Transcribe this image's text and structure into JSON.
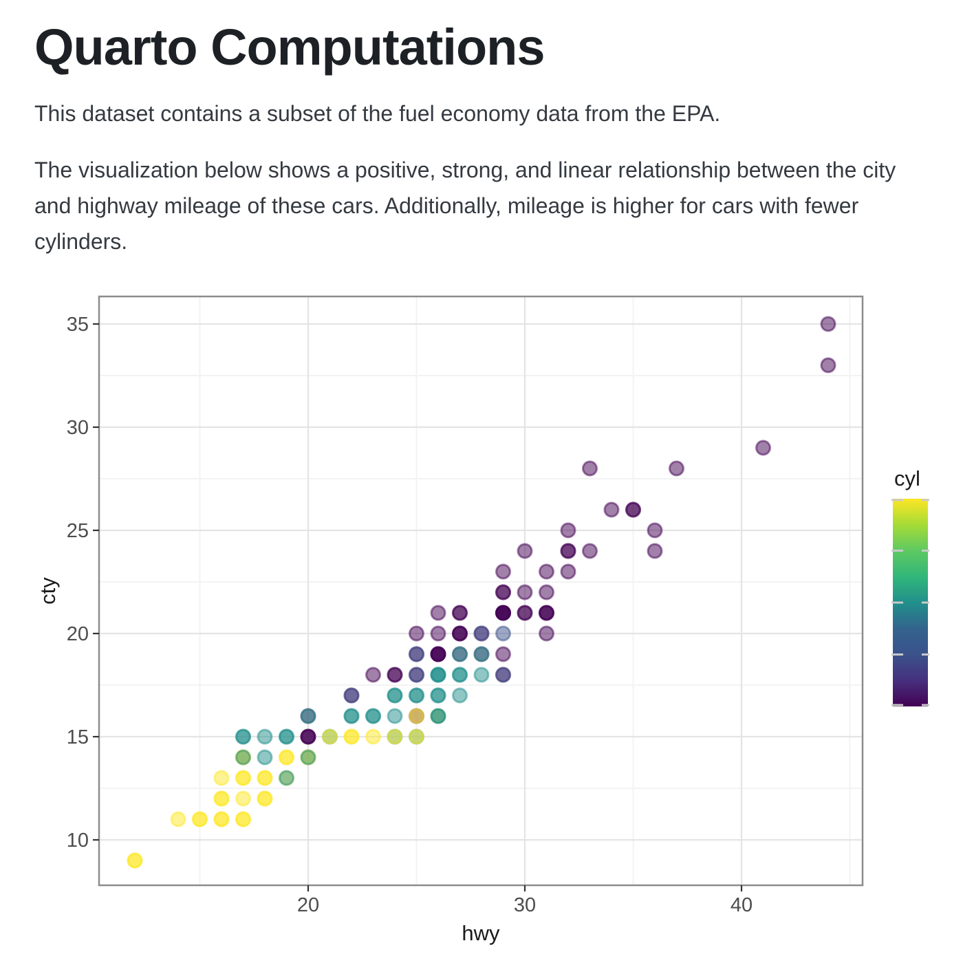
{
  "page": {
    "title": "Quarto Computations",
    "paragraphs": {
      "intro": "This dataset contains a subset of the fuel economy data from the EPA.",
      "description": "The visualization below shows a positive, strong, and linear relationship between the city and highway mileage of these cars. Additionally, mileage is higher for cars with fewer cylinders."
    }
  },
  "chart_data": {
    "type": "scatter",
    "xlabel": "hwy",
    "ylabel": "cty",
    "x_axis": {
      "ticks": [
        20,
        30,
        40
      ],
      "minor_ticks": [
        15,
        25,
        35,
        45
      ],
      "range": [
        10.4,
        45.6
      ]
    },
    "y_axis": {
      "ticks": [
        10,
        15,
        20,
        25,
        30,
        35
      ],
      "minor_ticks": [
        12.5,
        17.5,
        22.5,
        27.5,
        32.5
      ],
      "range": [
        7.7,
        36.3
      ]
    },
    "legend": {
      "title": "cyl",
      "min": 4,
      "max": 8,
      "tick_values": [
        4,
        5,
        6,
        7,
        8
      ],
      "labels_visible": false,
      "gradient_top_to_bottom": [
        "#FDE725",
        "#A5DB36",
        "#5EC962",
        "#32B67A",
        "#21908C",
        "#33638D",
        "#3B528B",
        "#46307E",
        "#440154"
      ]
    },
    "cyl_colors": {
      "4": "#440154",
      "5": "#3B528B",
      "6": "#21908C",
      "8": "#FDE725"
    },
    "point_alpha": 0.5,
    "style": {
      "grid_major": "#E4E4E4",
      "grid_minor": "#F3F3F3",
      "panel_border": "#8C8C8C",
      "tick_color": "#333333",
      "tick_label_color": "#4D4D4D",
      "axis_title_color": "#1A1A1A",
      "legend_tick_color": "#C9C9C9"
    },
    "points": [
      {
        "hwy": 12,
        "cty": 9,
        "layers": [
          8,
          8
        ]
      },
      {
        "hwy": 14,
        "cty": 11,
        "layers": [
          8
        ]
      },
      {
        "hwy": 15,
        "cty": 11,
        "layers": [
          8,
          8
        ]
      },
      {
        "hwy": 16,
        "cty": 11,
        "layers": [
          8,
          8
        ]
      },
      {
        "hwy": 17,
        "cty": 11,
        "layers": [
          8,
          8
        ]
      },
      {
        "hwy": 16,
        "cty": 12,
        "layers": [
          8,
          8
        ]
      },
      {
        "hwy": 17,
        "cty": 12,
        "layers": [
          8
        ]
      },
      {
        "hwy": 18,
        "cty": 12,
        "layers": [
          8,
          8
        ]
      },
      {
        "hwy": 16,
        "cty": 13,
        "layers": [
          8
        ]
      },
      {
        "hwy": 17,
        "cty": 13,
        "layers": [
          8,
          8
        ]
      },
      {
        "hwy": 18,
        "cty": 13,
        "layers": [
          8,
          8
        ]
      },
      {
        "hwy": 19,
        "cty": 13,
        "layers": [
          8,
          6
        ]
      },
      {
        "hwy": 17,
        "cty": 14,
        "layers": [
          8,
          8,
          6
        ]
      },
      {
        "hwy": 18,
        "cty": 14,
        "layers": [
          6
        ]
      },
      {
        "hwy": 19,
        "cty": 14,
        "layers": [
          8,
          8
        ]
      },
      {
        "hwy": 20,
        "cty": 14,
        "layers": [
          8,
          8,
          6
        ]
      },
      {
        "hwy": 17,
        "cty": 15,
        "layers": [
          6,
          6
        ]
      },
      {
        "hwy": 18,
        "cty": 15,
        "layers": [
          6
        ]
      },
      {
        "hwy": 19,
        "cty": 15,
        "layers": [
          6,
          6
        ]
      },
      {
        "hwy": 20,
        "cty": 15,
        "layers": [
          4,
          4,
          4
        ]
      },
      {
        "hwy": 21,
        "cty": 15,
        "layers": [
          6,
          8
        ]
      },
      {
        "hwy": 22,
        "cty": 15,
        "layers": [
          8,
          8
        ]
      },
      {
        "hwy": 23,
        "cty": 15,
        "layers": [
          8
        ]
      },
      {
        "hwy": 24,
        "cty": 15,
        "layers": [
          6,
          8
        ]
      },
      {
        "hwy": 25,
        "cty": 15,
        "layers": [
          6,
          8
        ]
      },
      {
        "hwy": 20,
        "cty": 16,
        "layers": [
          4,
          6
        ]
      },
      {
        "hwy": 22,
        "cty": 16,
        "layers": [
          6,
          6
        ]
      },
      {
        "hwy": 23,
        "cty": 16,
        "layers": [
          6,
          6
        ]
      },
      {
        "hwy": 24,
        "cty": 16,
        "layers": [
          6
        ]
      },
      {
        "hwy": 25,
        "cty": 16,
        "layers": [
          4,
          8
        ]
      },
      {
        "hwy": 26,
        "cty": 16,
        "layers": [
          8,
          6,
          6
        ]
      },
      {
        "hwy": 22,
        "cty": 17,
        "layers": [
          4,
          5
        ]
      },
      {
        "hwy": 24,
        "cty": 17,
        "layers": [
          6,
          6
        ]
      },
      {
        "hwy": 25,
        "cty": 17,
        "layers": [
          6,
          6
        ]
      },
      {
        "hwy": 26,
        "cty": 17,
        "layers": [
          6,
          6
        ]
      },
      {
        "hwy": 27,
        "cty": 17,
        "layers": [
          6
        ]
      },
      {
        "hwy": 23,
        "cty": 18,
        "layers": [
          4
        ]
      },
      {
        "hwy": 24,
        "cty": 18,
        "layers": [
          4,
          4
        ]
      },
      {
        "hwy": 25,
        "cty": 18,
        "layers": [
          4,
          5
        ]
      },
      {
        "hwy": 26,
        "cty": 18,
        "layers": [
          6,
          6,
          6
        ]
      },
      {
        "hwy": 27,
        "cty": 18,
        "layers": [
          6,
          6
        ]
      },
      {
        "hwy": 28,
        "cty": 18,
        "layers": [
          6
        ]
      },
      {
        "hwy": 29,
        "cty": 18,
        "layers": [
          4,
          5
        ]
      },
      {
        "hwy": 25,
        "cty": 19,
        "layers": [
          4,
          5
        ]
      },
      {
        "hwy": 26,
        "cty": 19,
        "layers": [
          4,
          4,
          4,
          4
        ]
      },
      {
        "hwy": 27,
        "cty": 19,
        "layers": [
          4,
          6
        ]
      },
      {
        "hwy": 28,
        "cty": 19,
        "layers": [
          4,
          6
        ]
      },
      {
        "hwy": 29,
        "cty": 19,
        "layers": [
          4
        ]
      },
      {
        "hwy": 25,
        "cty": 20,
        "layers": [
          4
        ]
      },
      {
        "hwy": 26,
        "cty": 20,
        "layers": [
          4
        ]
      },
      {
        "hwy": 27,
        "cty": 20,
        "layers": [
          4,
          4,
          4
        ]
      },
      {
        "hwy": 28,
        "cty": 20,
        "layers": [
          4,
          5
        ]
      },
      {
        "hwy": 29,
        "cty": 20,
        "layers": [
          5
        ]
      },
      {
        "hwy": 31,
        "cty": 20,
        "layers": [
          4
        ]
      },
      {
        "hwy": 26,
        "cty": 21,
        "layers": [
          4
        ]
      },
      {
        "hwy": 27,
        "cty": 21,
        "layers": [
          4,
          4
        ]
      },
      {
        "hwy": 29,
        "cty": 21,
        "layers": [
          5,
          4,
          4,
          4,
          4
        ]
      },
      {
        "hwy": 30,
        "cty": 21,
        "layers": [
          4,
          4
        ]
      },
      {
        "hwy": 31,
        "cty": 21,
        "layers": [
          4,
          4,
          4
        ]
      },
      {
        "hwy": 29,
        "cty": 22,
        "layers": [
          4,
          4
        ]
      },
      {
        "hwy": 30,
        "cty": 22,
        "layers": [
          4
        ]
      },
      {
        "hwy": 31,
        "cty": 22,
        "layers": [
          4
        ]
      },
      {
        "hwy": 29,
        "cty": 23,
        "layers": [
          4
        ]
      },
      {
        "hwy": 31,
        "cty": 23,
        "layers": [
          4
        ]
      },
      {
        "hwy": 32,
        "cty": 23,
        "layers": [
          4
        ]
      },
      {
        "hwy": 30,
        "cty": 24,
        "layers": [
          4
        ]
      },
      {
        "hwy": 32,
        "cty": 24,
        "layers": [
          4,
          4
        ]
      },
      {
        "hwy": 33,
        "cty": 24,
        "layers": [
          4
        ]
      },
      {
        "hwy": 36,
        "cty": 24,
        "layers": [
          4
        ]
      },
      {
        "hwy": 32,
        "cty": 25,
        "layers": [
          4
        ]
      },
      {
        "hwy": 36,
        "cty": 25,
        "layers": [
          4
        ]
      },
      {
        "hwy": 34,
        "cty": 26,
        "layers": [
          4
        ]
      },
      {
        "hwy": 35,
        "cty": 26,
        "layers": [
          4,
          4
        ]
      },
      {
        "hwy": 33,
        "cty": 28,
        "layers": [
          4
        ]
      },
      {
        "hwy": 37,
        "cty": 28,
        "layers": [
          4
        ]
      },
      {
        "hwy": 41,
        "cty": 29,
        "layers": [
          4
        ]
      },
      {
        "hwy": 44,
        "cty": 33,
        "layers": [
          4
        ]
      },
      {
        "hwy": 44,
        "cty": 35,
        "layers": [
          4
        ]
      }
    ]
  }
}
